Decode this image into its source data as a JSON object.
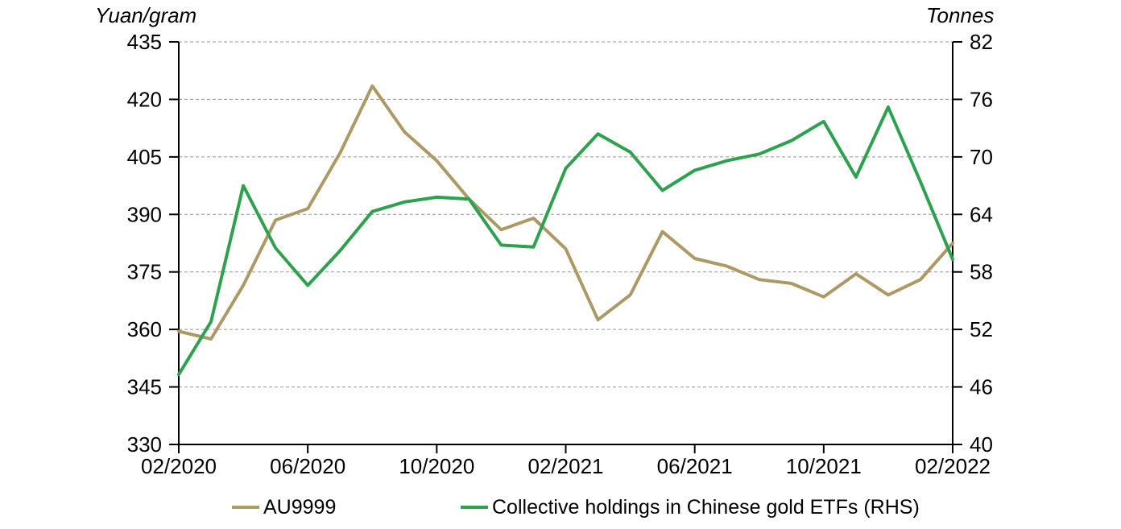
{
  "axis_titles": {
    "left": "Yuan/gram",
    "right": "Tonnes"
  },
  "legend": {
    "items": [
      {
        "label": "AU9999",
        "color": "#AC9964"
      },
      {
        "label": "Collective holdings in Chinese gold ETFs (RHS)",
        "color": "#2DA14E"
      }
    ]
  },
  "chart_data": {
    "type": "line",
    "x_months": [
      "02/2020",
      "03/2020",
      "04/2020",
      "05/2020",
      "06/2020",
      "07/2020",
      "08/2020",
      "09/2020",
      "10/2020",
      "11/2020",
      "12/2020",
      "01/2021",
      "02/2021",
      "03/2021",
      "04/2021",
      "05/2021",
      "06/2021",
      "07/2021",
      "08/2021",
      "09/2021",
      "10/2021",
      "11/2021",
      "12/2021",
      "01/2022",
      "02/2022"
    ],
    "x_tick_labels": [
      "02/2020",
      "06/2020",
      "10/2020",
      "02/2021",
      "06/2021",
      "10/2021",
      "02/2022"
    ],
    "x_tick_indices": [
      0,
      4,
      8,
      12,
      16,
      20,
      24
    ],
    "left_axis": {
      "label": "Yuan/gram",
      "min": 330,
      "max": 435,
      "step": 15,
      "tick_labels": [
        "330",
        "345",
        "360",
        "375",
        "390",
        "405",
        "420",
        "435"
      ]
    },
    "right_axis": {
      "label": "Tonnes",
      "min": 40,
      "max": 82,
      "step": 6,
      "tick_labels": [
        "40",
        "46",
        "52",
        "58",
        "64",
        "70",
        "76",
        "82"
      ]
    },
    "grid": {
      "horizontal": true,
      "style": "dashed",
      "color": "#969696"
    },
    "legend_position": "bottom",
    "series": [
      {
        "name": "AU9999",
        "axis": "left",
        "color": "#AC9964",
        "values": [
          359.5,
          357.5,
          371.5,
          388.5,
          391.5,
          406,
          423.5,
          411.5,
          404,
          394,
          386,
          389,
          381,
          362.5,
          369,
          385.5,
          378.5,
          376.5,
          373,
          372,
          368.5,
          374.5,
          369,
          373,
          382.5
        ]
      },
      {
        "name": "Collective holdings in Chinese gold ETFs (RHS)",
        "axis": "right",
        "color": "#2DA14E",
        "values": [
          47.3,
          52.8,
          67.0,
          60.5,
          56.6,
          60.2,
          64.3,
          65.3,
          65.8,
          65.6,
          60.8,
          60.6,
          68.8,
          72.4,
          70.5,
          66.5,
          68.6,
          69.6,
          70.3,
          71.7,
          73.7,
          67.9,
          75.2,
          67.4,
          59.3
        ]
      }
    ]
  }
}
